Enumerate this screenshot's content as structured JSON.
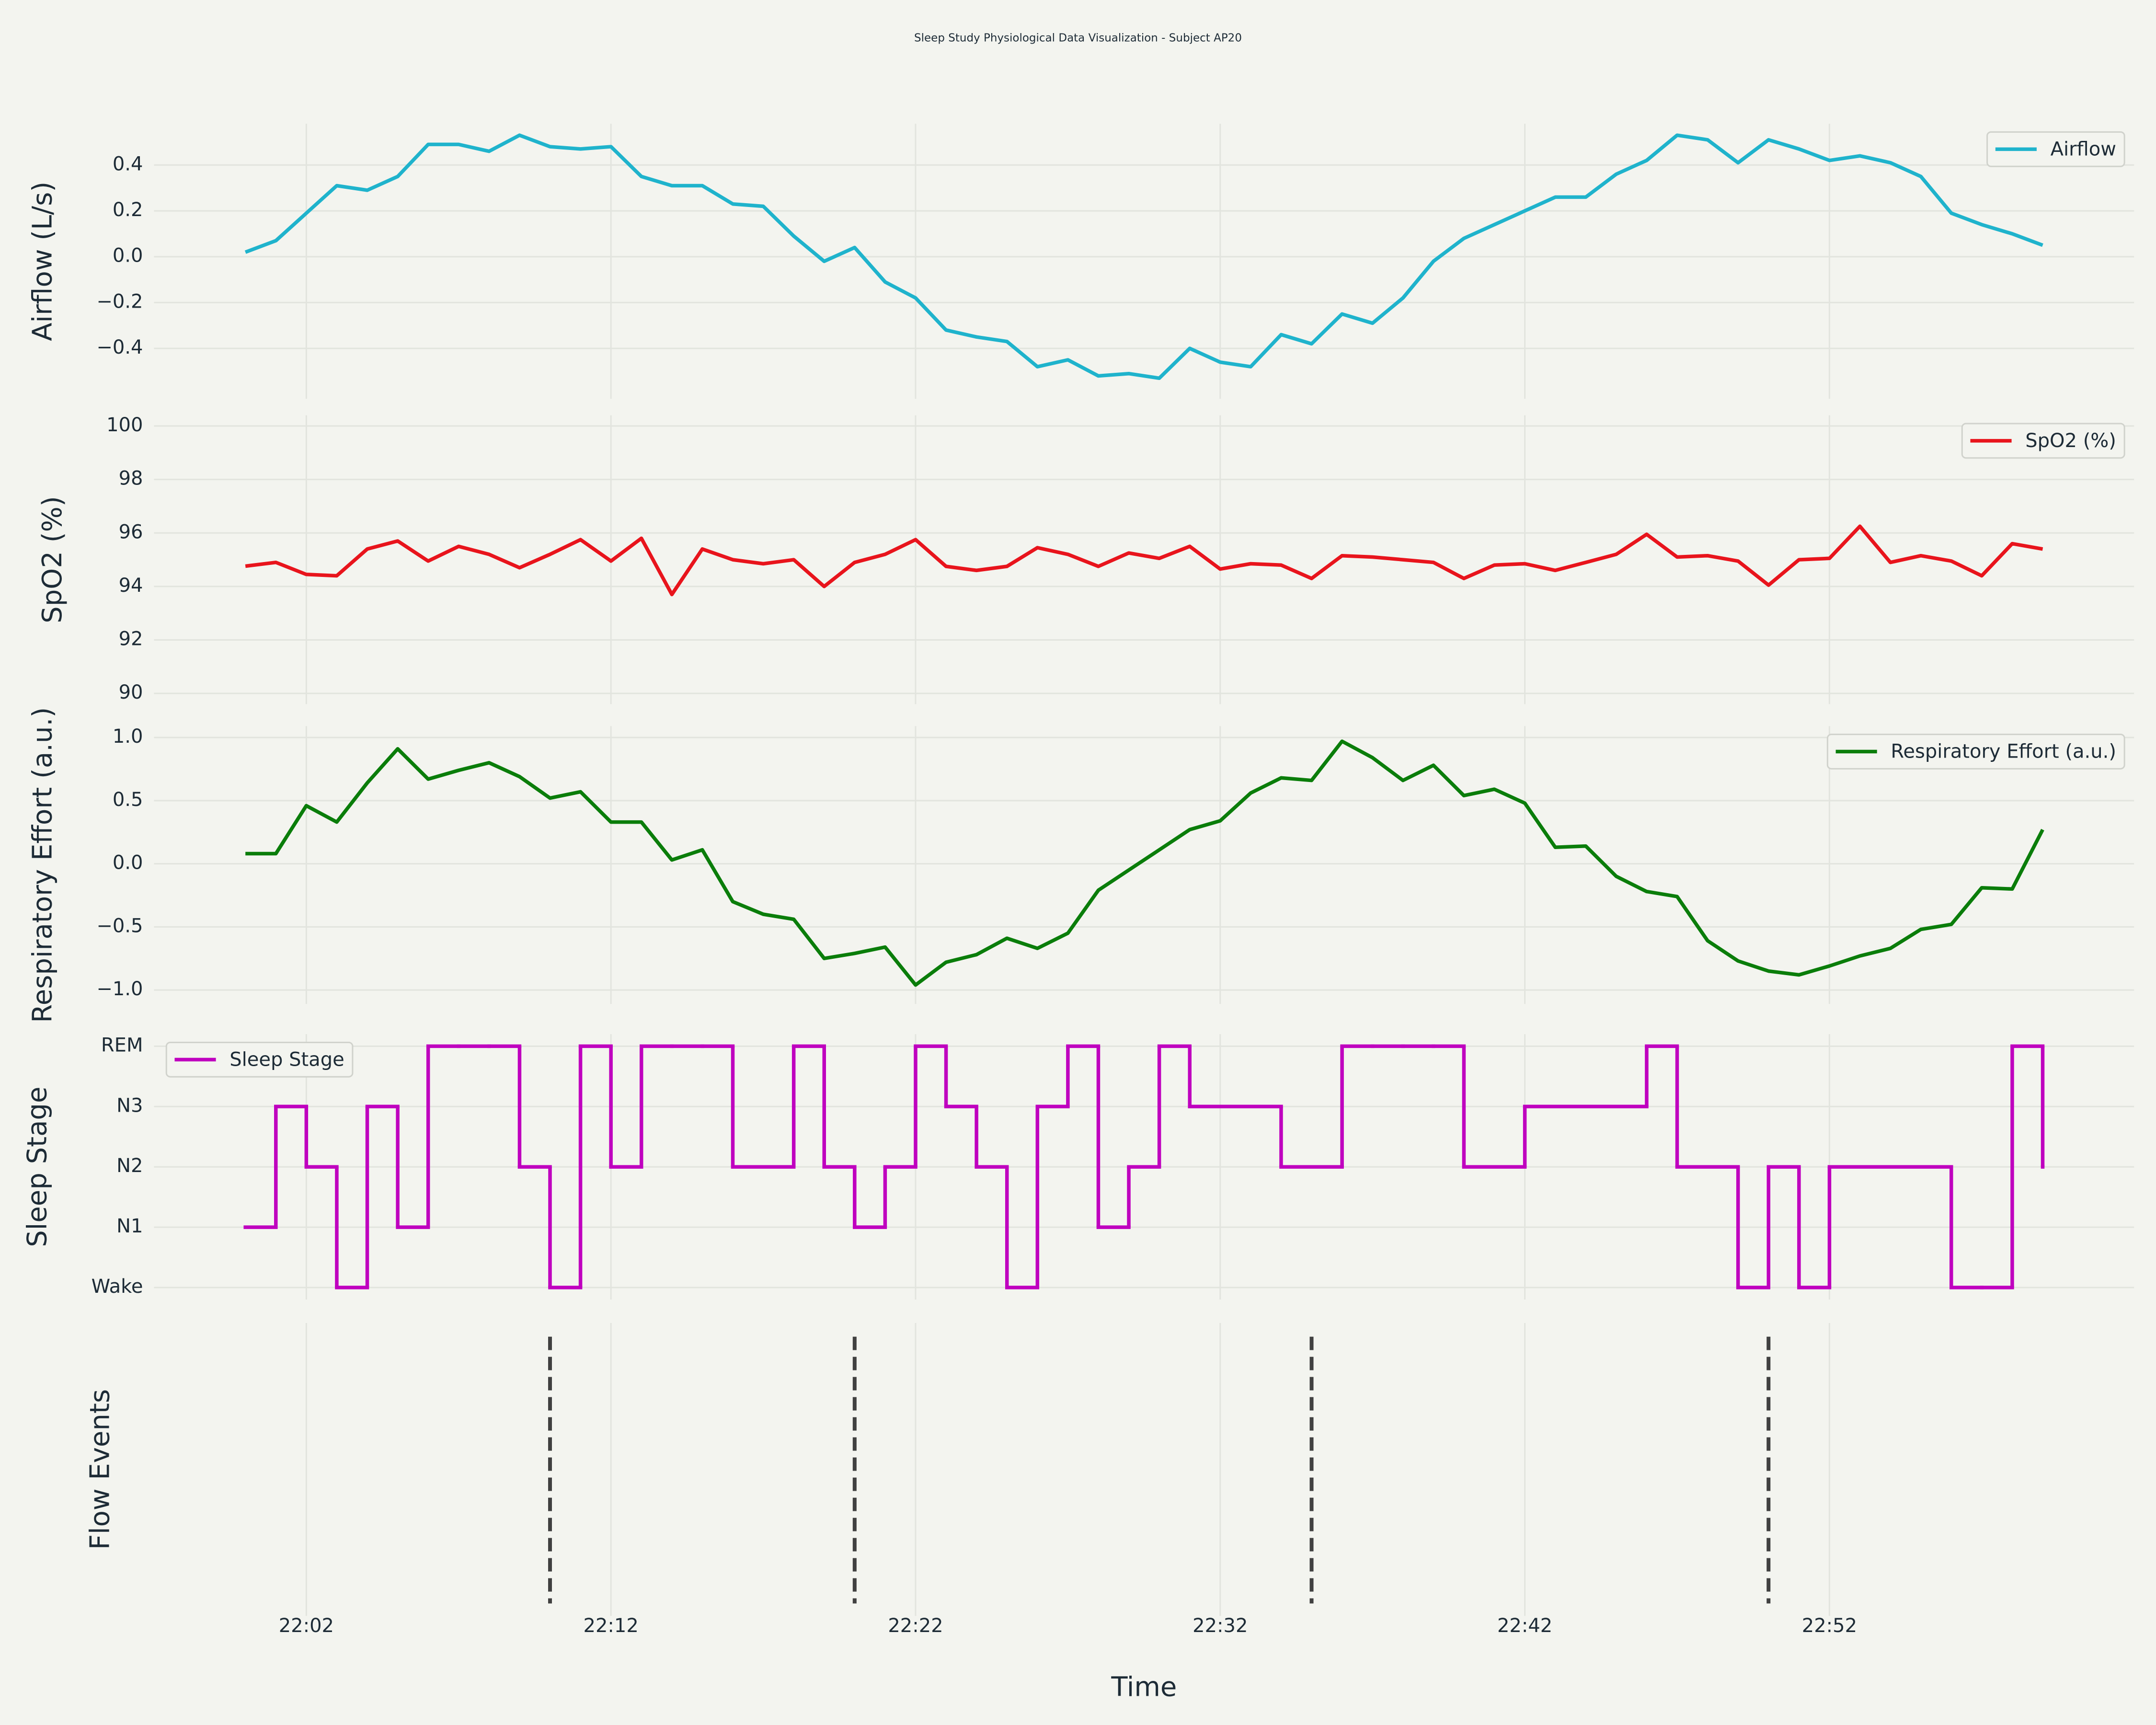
{
  "title": "Sleep Study Physiological Data Visualization - Subject AP20",
  "chart_data": [
    {
      "type": "line",
      "ylabel": "Airflow (L/s)",
      "legend": "upper right",
      "x": [
        "22:00",
        "22:01",
        "22:02",
        "22:03",
        "22:04",
        "22:05",
        "22:06",
        "22:07",
        "22:08",
        "22:09",
        "22:10",
        "22:11",
        "22:12",
        "22:13",
        "22:14",
        "22:15",
        "22:16",
        "22:17",
        "22:18",
        "22:19",
        "22:20",
        "22:21",
        "22:22",
        "22:23",
        "22:24",
        "22:25",
        "22:26",
        "22:27",
        "22:28",
        "22:29",
        "22:30",
        "22:31",
        "22:32",
        "22:33",
        "22:34",
        "22:35",
        "22:36",
        "22:37",
        "22:38",
        "22:39",
        "22:40",
        "22:41",
        "22:42",
        "22:43",
        "22:44",
        "22:45",
        "22:46",
        "22:47",
        "22:48",
        "22:49",
        "22:50",
        "22:51",
        "22:52",
        "22:53",
        "22:54",
        "22:55",
        "22:56",
        "22:57",
        "22:58",
        "22:59"
      ],
      "series": [
        {
          "name": "Airflow",
          "color": "#1fb3cc",
          "values": [
            0.02,
            0.07,
            0.19,
            0.31,
            0.29,
            0.35,
            0.49,
            0.49,
            0.46,
            0.53,
            0.48,
            0.47,
            0.48,
            0.35,
            0.31,
            0.31,
            0.23,
            0.22,
            0.09,
            -0.02,
            0.04,
            -0.11,
            -0.18,
            -0.32,
            -0.35,
            -0.37,
            -0.48,
            -0.45,
            -0.52,
            -0.51,
            -0.53,
            -0.4,
            -0.46,
            -0.48,
            -0.34,
            -0.38,
            -0.25,
            -0.29,
            -0.18,
            -0.02,
            0.08,
            0.14,
            0.2,
            0.26,
            0.26,
            0.36,
            0.42,
            0.53,
            0.51,
            0.41,
            0.51,
            0.47,
            0.42,
            0.44,
            0.41,
            0.35,
            0.19,
            0.14,
            0.1,
            0.05
          ]
        }
      ],
      "xlim": [
        "21:57",
        "23:02"
      ],
      "xticks": [
        "22:02",
        "22:12",
        "22:22",
        "22:32",
        "22:42",
        "22:52"
      ],
      "ylim": [
        -0.62,
        0.58
      ],
      "yticks": [
        {
          "value": -0.4,
          "label": "−0.4"
        },
        {
          "value": -0.2,
          "label": "−0.2"
        },
        {
          "value": 0,
          "label": "0.0"
        },
        0.2,
        0.4
      ]
    },
    {
      "type": "line",
      "ylabel": "SpO2 (%)",
      "legend": "upper right",
      "x": [
        "22:00",
        "22:01",
        "22:02",
        "22:03",
        "22:04",
        "22:05",
        "22:06",
        "22:07",
        "22:08",
        "22:09",
        "22:10",
        "22:11",
        "22:12",
        "22:13",
        "22:14",
        "22:15",
        "22:16",
        "22:17",
        "22:18",
        "22:19",
        "22:20",
        "22:21",
        "22:22",
        "22:23",
        "22:24",
        "22:25",
        "22:26",
        "22:27",
        "22:28",
        "22:29",
        "22:30",
        "22:31",
        "22:32",
        "22:33",
        "22:34",
        "22:35",
        "22:36",
        "22:37",
        "22:38",
        "22:39",
        "22:40",
        "22:41",
        "22:42",
        "22:43",
        "22:44",
        "22:45",
        "22:46",
        "22:47",
        "22:48",
        "22:49",
        "22:50",
        "22:51",
        "22:52",
        "22:53",
        "22:54",
        "22:55",
        "22:56",
        "22:57",
        "22:58",
        "22:59"
      ],
      "series": [
        {
          "name": "SpO2 (%)",
          "color": "#e8141c",
          "values": [
            94.76,
            94.9,
            94.45,
            94.4,
            95.4,
            95.7,
            94.95,
            95.5,
            95.2,
            94.7,
            95.2,
            95.75,
            94.95,
            95.8,
            93.7,
            95.4,
            95.0,
            94.85,
            95.0,
            94.0,
            94.9,
            95.2,
            95.75,
            94.75,
            94.6,
            94.75,
            95.45,
            95.2,
            94.75,
            95.25,
            95.05,
            95.5,
            94.65,
            94.85,
            94.8,
            94.3,
            95.15,
            95.1,
            95.0,
            94.9,
            94.3,
            94.8,
            94.85,
            94.6,
            94.9,
            95.2,
            95.95,
            95.1,
            95.15,
            94.95,
            94.05,
            95.0,
            95.05,
            96.25,
            94.9,
            95.15,
            94.95,
            94.4,
            95.6,
            95.4
          ]
        }
      ],
      "xlim": [
        "21:57",
        "23:02"
      ],
      "xticks": [
        "22:02",
        "22:12",
        "22:22",
        "22:32",
        "22:42",
        "22:52"
      ],
      "ylim": [
        89.6,
        100.4
      ],
      "yticks": [
        90,
        92,
        94,
        96,
        98,
        100
      ]
    },
    {
      "type": "line",
      "ylabel": "Respiratory Effort (a.u.)",
      "legend": "upper right",
      "x": [
        "22:00",
        "22:01",
        "22:02",
        "22:03",
        "22:04",
        "22:05",
        "22:06",
        "22:07",
        "22:08",
        "22:09",
        "22:10",
        "22:11",
        "22:12",
        "22:13",
        "22:14",
        "22:15",
        "22:16",
        "22:17",
        "22:18",
        "22:19",
        "22:20",
        "22:21",
        "22:22",
        "22:23",
        "22:24",
        "22:25",
        "22:26",
        "22:27",
        "22:28",
        "22:29",
        "22:30",
        "22:31",
        "22:32",
        "22:33",
        "22:34",
        "22:35",
        "22:36",
        "22:37",
        "22:38",
        "22:39",
        "22:40",
        "22:41",
        "22:42",
        "22:43",
        "22:44",
        "22:45",
        "22:46",
        "22:47",
        "22:48",
        "22:49",
        "22:50",
        "22:51",
        "22:52",
        "22:53",
        "22:54",
        "22:55",
        "22:56",
        "22:57",
        "22:58",
        "22:59"
      ],
      "series": [
        {
          "name": "Respiratory Effort (a.u.)",
          "color": "#0a7d0a",
          "values": [
            0.08,
            0.08,
            0.46,
            0.33,
            0.64,
            0.91,
            0.67,
            0.74,
            0.8,
            0.69,
            0.52,
            0.57,
            0.33,
            0.33,
            0.03,
            0.11,
            -0.3,
            -0.4,
            -0.44,
            -0.75,
            -0.71,
            -0.66,
            -0.96,
            -0.78,
            -0.72,
            -0.59,
            -0.67,
            -0.55,
            -0.21,
            -0.05,
            0.11,
            0.27,
            0.34,
            0.56,
            0.68,
            0.66,
            0.97,
            0.84,
            0.66,
            0.78,
            0.54,
            0.59,
            0.48,
            0.13,
            0.14,
            -0.1,
            -0.22,
            -0.26,
            -0.61,
            -0.77,
            -0.85,
            -0.88,
            -0.81,
            -0.73,
            -0.67,
            -0.52,
            -0.48,
            -0.19,
            -0.2,
            0.27
          ]
        }
      ],
      "xlim": [
        "21:57",
        "23:02"
      ],
      "xticks": [
        "22:02",
        "22:12",
        "22:22",
        "22:32",
        "22:42",
        "22:52"
      ],
      "ylim": [
        -1.11,
        1.09
      ],
      "yticks": [
        {
          "value": -1,
          "label": "−1.0"
        },
        {
          "value": -0.5,
          "label": "−0.5"
        },
        {
          "value": 0,
          "label": "0.0"
        },
        0.5,
        {
          "value": 1,
          "label": "1.0"
        }
      ]
    },
    {
      "type": "step",
      "ylabel": "Sleep Stage",
      "legend": "upper left",
      "x": [
        "22:00",
        "22:01",
        "22:02",
        "22:03",
        "22:04",
        "22:05",
        "22:06",
        "22:07",
        "22:08",
        "22:09",
        "22:10",
        "22:11",
        "22:12",
        "22:13",
        "22:14",
        "22:15",
        "22:16",
        "22:17",
        "22:18",
        "22:19",
        "22:20",
        "22:21",
        "22:22",
        "22:23",
        "22:24",
        "22:25",
        "22:26",
        "22:27",
        "22:28",
        "22:29",
        "22:30",
        "22:31",
        "22:32",
        "22:33",
        "22:34",
        "22:35",
        "22:36",
        "22:37",
        "22:38",
        "22:39",
        "22:40",
        "22:41",
        "22:42",
        "22:43",
        "22:44",
        "22:45",
        "22:46",
        "22:47",
        "22:48",
        "22:49",
        "22:50",
        "22:51",
        "22:52",
        "22:53",
        "22:54",
        "22:55",
        "22:56",
        "22:57",
        "22:58",
        "22:59"
      ],
      "series": [
        {
          "name": "Sleep Stage",
          "color": "#bf00bf",
          "values": [
            1,
            3,
            2,
            0,
            3,
            1,
            4,
            4,
            4,
            2,
            0,
            4,
            2,
            4,
            4,
            4,
            2,
            2,
            4,
            2,
            1,
            2,
            4,
            3,
            2,
            0,
            3,
            4,
            1,
            2,
            4,
            3,
            3,
            3,
            2,
            2,
            4,
            4,
            4,
            4,
            2,
            2,
            3,
            3,
            3,
            3,
            4,
            2,
            2,
            0,
            2,
            0,
            2,
            2,
            2,
            2,
            0,
            0,
            4,
            2
          ]
        }
      ],
      "xlim": [
        "21:57",
        "23:02"
      ],
      "xticks": [
        "22:02",
        "22:12",
        "22:22",
        "22:32",
        "22:42",
        "22:52"
      ],
      "ylim": [
        -0.2,
        4.2
      ],
      "yticks": [
        {
          "value": 0,
          "label": "Wake"
        },
        {
          "value": 1,
          "label": "N1"
        },
        {
          "value": 2,
          "label": "N2"
        },
        {
          "value": 3,
          "label": "N3"
        },
        {
          "value": 4,
          "label": "REM"
        }
      ]
    },
    {
      "type": "events",
      "ylabel": "Flow Events",
      "xlabel": "Time",
      "color": "#404040",
      "events": [
        "22:10",
        "22:20",
        "22:35",
        "22:50"
      ],
      "xlim": [
        "21:57",
        "23:02"
      ],
      "xticks": [
        "22:02",
        "22:12",
        "22:22",
        "22:32",
        "22:42",
        "22:52"
      ]
    }
  ]
}
